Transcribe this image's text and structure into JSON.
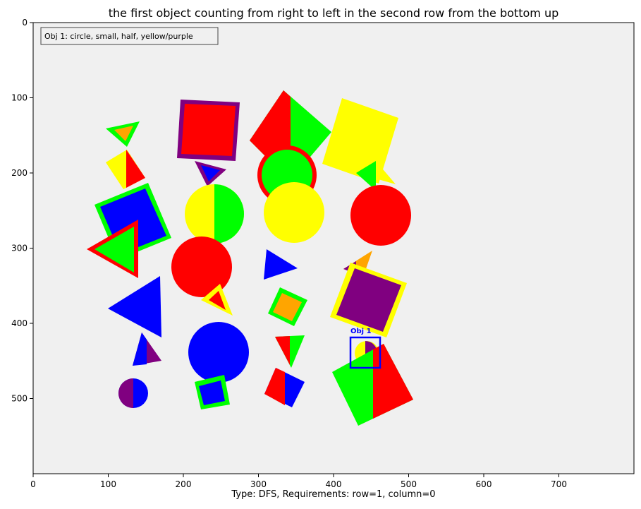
{
  "figure": {
    "title": "the first object counting from right to left in the second row from the bottom up",
    "footer": "Type: DFS, Requirements: row=1, column=0",
    "background_color": "#f0f0f0",
    "legend_text": "Obj 1: circle, small, half, yellow/purple",
    "highlight_label": "Obj 1",
    "highlight_color": "#0000ff",
    "x_axis": {
      "ticks": [
        0,
        100,
        200,
        300,
        400,
        500,
        600,
        700
      ],
      "range": [
        0,
        800
      ]
    },
    "y_axis": {
      "ticks": [
        0,
        100,
        200,
        300,
        400,
        500
      ],
      "range": [
        0,
        600
      ],
      "inverted": true
    }
  },
  "colors": {
    "red": "#ff0000",
    "green": "#00ff00",
    "blue": "#0000ff",
    "yellow": "#ffff00",
    "purple": "#800080",
    "orange": "#ffa500"
  }
}
